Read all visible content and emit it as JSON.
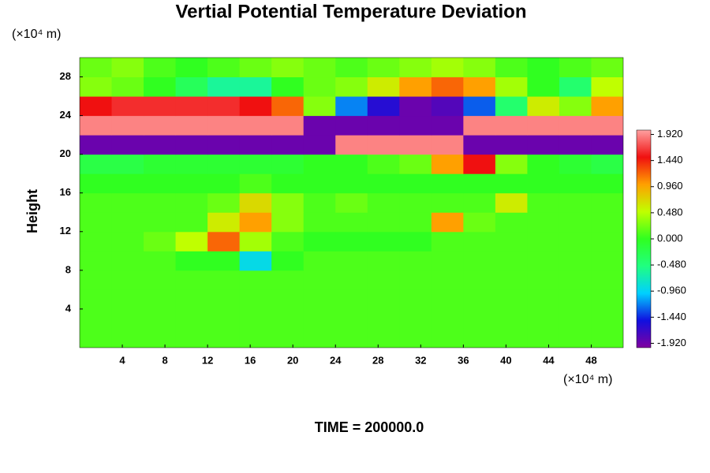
{
  "chart_data": {
    "type": "heatmap",
    "title": "Vertial Potential Temperature Deviation",
    "y_label": "Height",
    "y_unit": "(×10⁴ m)",
    "x_unit": "(×10⁴ m)",
    "footer": "TIME = 200000.0",
    "xlim": [
      0,
      51
    ],
    "ylim": [
      0,
      30
    ],
    "xticks": [
      4,
      8,
      12,
      16,
      20,
      24,
      28,
      32,
      36,
      40,
      44,
      48
    ],
    "yticks": [
      4,
      8,
      12,
      16,
      20,
      24,
      28
    ],
    "x": [
      1.5,
      4.5,
      7.5,
      10.5,
      13.5,
      16.5,
      19.5,
      22.5,
      25.5,
      28.5,
      31.5,
      34.5,
      37.5,
      40.5,
      43.5,
      46.5,
      49.5
    ],
    "y": [
      1,
      3,
      5,
      7,
      9,
      11,
      13,
      15,
      17,
      19,
      21,
      23,
      25,
      27,
      29
    ],
    "z": [
      [
        0.1,
        0.1,
        0.1,
        0.1,
        0.1,
        0.1,
        0.1,
        0.1,
        0.1,
        0.1,
        0.1,
        0.1,
        0.1,
        0.1,
        0.1,
        0.1,
        0.1
      ],
      [
        0.1,
        0.1,
        0.1,
        0.1,
        0.1,
        0.1,
        0.1,
        0.1,
        0.1,
        0.1,
        0.1,
        0.1,
        0.1,
        0.1,
        0.1,
        0.1,
        0.1
      ],
      [
        0.1,
        0.1,
        0.1,
        0.1,
        0.1,
        0.1,
        0.1,
        0.1,
        0.1,
        0.1,
        0.1,
        0.1,
        0.1,
        0.1,
        0.1,
        0.1,
        0.1
      ],
      [
        0.1,
        0.1,
        0.1,
        0.1,
        0.1,
        0.1,
        0.1,
        0.1,
        0.1,
        0.1,
        0.1,
        0.1,
        0.1,
        0.1,
        0.1,
        0.1,
        0.1
      ],
      [
        0.1,
        0.1,
        0.1,
        0.0,
        0.0,
        -0.9,
        0.0,
        0.1,
        0.1,
        0.1,
        0.1,
        0.1,
        0.1,
        0.1,
        0.1,
        0.1,
        0.1
      ],
      [
        0.1,
        0.1,
        0.2,
        0.5,
        1.2,
        0.4,
        0.1,
        0.0,
        0.0,
        0.0,
        0.0,
        0.1,
        0.1,
        0.1,
        0.1,
        0.1,
        0.1
      ],
      [
        0.1,
        0.1,
        0.1,
        0.1,
        0.6,
        1.0,
        0.3,
        0.1,
        0.1,
        0.1,
        0.1,
        1.0,
        0.2,
        0.1,
        0.1,
        0.1,
        0.1
      ],
      [
        0.1,
        0.1,
        0.1,
        0.1,
        0.2,
        0.7,
        0.3,
        0.1,
        0.2,
        0.1,
        0.1,
        0.1,
        0.1,
        0.6,
        0.1,
        0.1,
        0.1
      ],
      [
        0.0,
        0.0,
        0.0,
        0.0,
        0.0,
        0.1,
        0.0,
        0.0,
        0.0,
        0.0,
        0.0,
        0.0,
        0.0,
        0.0,
        0.0,
        0.0,
        0.0
      ],
      [
        -0.2,
        -0.2,
        -0.1,
        -0.1,
        -0.1,
        -0.1,
        -0.1,
        0.0,
        0.0,
        0.1,
        0.2,
        1.0,
        1.5,
        0.3,
        0.0,
        -0.1,
        -0.2
      ],
      [
        -1.9,
        -1.9,
        -1.9,
        -1.9,
        -1.9,
        -1.9,
        -1.9,
        -1.9,
        1.9,
        1.9,
        1.9,
        1.9,
        -1.9,
        -1.9,
        -1.9,
        -1.9,
        -1.9
      ],
      [
        1.9,
        1.9,
        1.9,
        1.9,
        1.9,
        1.9,
        1.9,
        -1.9,
        -1.9,
        -1.9,
        -1.9,
        -1.9,
        1.9,
        1.9,
        1.9,
        1.9,
        1.9
      ],
      [
        1.5,
        1.6,
        1.6,
        1.6,
        1.6,
        1.5,
        1.2,
        0.3,
        -1.2,
        -1.6,
        -1.9,
        -1.8,
        -1.3,
        -0.4,
        0.6,
        0.3,
        1.0
      ],
      [
        0.3,
        0.2,
        0.0,
        -0.3,
        -0.6,
        -0.6,
        0.0,
        0.2,
        0.3,
        0.6,
        1.0,
        1.2,
        1.0,
        0.4,
        0.0,
        -0.4,
        0.5
      ],
      [
        0.2,
        0.3,
        0.1,
        0.0,
        0.1,
        0.2,
        0.3,
        0.2,
        0.1,
        0.2,
        0.3,
        0.4,
        0.3,
        0.1,
        0.0,
        0.1,
        0.2
      ]
    ],
    "clim": [
      -2,
      2
    ],
    "colormap": [
      "#8000a0",
      "#1010e0",
      "#00d0ff",
      "#20ff80",
      "#30ff20",
      "#c0ff00",
      "#ffa000",
      "#f01010",
      "#ffa0a0"
    ],
    "cticks": [
      {
        "value": 1.92,
        "label": "1.920"
      },
      {
        "value": 1.44,
        "label": "1.440"
      },
      {
        "value": 0.96,
        "label": "0.960"
      },
      {
        "value": 0.48,
        "label": "0.480"
      },
      {
        "value": 0,
        "label": "0.000"
      },
      {
        "value": -0.48,
        "label": "-0.480"
      },
      {
        "value": -0.96,
        "label": "-0.960"
      },
      {
        "value": -1.44,
        "label": "-1.440"
      },
      {
        "value": -1.92,
        "label": "-1.920"
      }
    ]
  }
}
